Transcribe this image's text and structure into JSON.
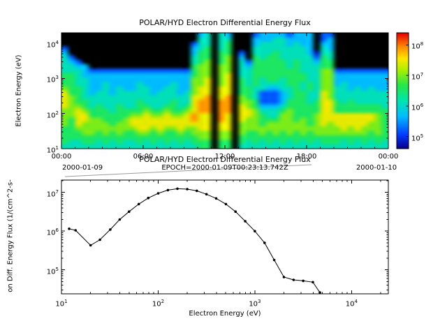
{
  "chart_data": [
    {
      "type": "heatmap",
      "title": "POLAR/HYD  Electron Differential Energy Flux",
      "ylabel": "Electron Energy (eV)",
      "x_tick_labels": [
        "00:00",
        "06:00",
        "12:00",
        "18:00",
        "00:00"
      ],
      "x_tick_hours": [
        0,
        6,
        12,
        18,
        24
      ],
      "x_date_start": "2000-01-09",
      "x_date_end": "2000-01-10",
      "x_range_hours": [
        0,
        24
      ],
      "y_log_range": [
        1.0,
        4.3
      ],
      "y_tick_exponents": [
        1,
        2,
        3,
        4
      ],
      "colorbar_tick_exponents": [
        5,
        6,
        7,
        8
      ],
      "color_log_range": [
        4.6,
        8.4
      ],
      "value_encoding": "each row string is one energy band (top to bottom), one char per 30-min time bin; digit 0 = below scale (black), digits 1-9: log10(flux) = 4.3 + 0.45 * digit",
      "n_time_bins": 48,
      "rows_top_to_bottom": [
        "000000000000000000003404300023333233302200000000",
        "000000000000000000004404400033344333302300000000",
        "000000000000000000024404500034444343303300000000",
        "200000000000000000034504500044444444304300000000",
        "300000000000000000035505502044454444314400000000",
        "420000000000000000045505603054554444425400000000",
        "432000000000000000045605604255555454435500000000",
        "443300000000000000056606604355555454445500000000",
        "444322222222222222256606604455555554446622222222",
        "554333333333333333356606704455555555446633333333",
        "554433333333333333366706705454554555446633333333",
        "554433433334333343366706705454444554546634333333",
        "655433434334433443367707705544334454546644343433",
        "755434434444434443467707705542223455447644444444",
        "765444444444444444477807806542223455447644444444",
        "765544444445444454478808806652223555457754544444",
        "766545445445544554578808807653334555557755555554",
        "667655545555655655678808807764445655557755555555",
        "667755555566766766787708707765446655567777777765",
        "657766555677777777787708707665556656567777777765",
        "657666656677777777777707706665666666567677777665",
        "556666666667767667667707706666666666666667676665",
        "555665656556656556566606606556565656566666666565",
        "555555555555555555556606605555555555555555555555",
        "544554545445454545455505505454545454545554545454",
        "444444444444444444445505504444444444444444444444"
      ]
    },
    {
      "type": "line",
      "title": "POLAR/HYD  Electron Differential Energy Flux",
      "subtitle": "EPOCH=2000-01-09T00:23:13.742Z",
      "xlabel": "Electron Energy (eV)",
      "ylabel": "on Diff. Energy Flux (1/(cm^2-s-",
      "x_log_range": [
        1.0,
        4.38
      ],
      "y_log_range": [
        4.38,
        7.32
      ],
      "x_tick_exponents": [
        1,
        2,
        3,
        4
      ],
      "y_tick_exponents": [
        5,
        6,
        7
      ],
      "marker": "dot",
      "line_color": "#000000",
      "x": [
        12,
        14,
        20,
        25,
        32,
        40,
        50,
        63,
        79,
        100,
        126,
        158,
        200,
        251,
        316,
        398,
        501,
        631,
        794,
        1000,
        1259,
        1585,
        1995,
        2512,
        3162,
        3981,
        4700
      ],
      "y": [
        1150000,
        1050000,
        430000,
        600000,
        1100000,
        2000000,
        3200000,
        5000000,
        7200000,
        9500000,
        11500000,
        12500000,
        12200000,
        11000000,
        9000000,
        7000000,
        5000000,
        3200000,
        1800000,
        1000000,
        500000,
        180000,
        65000,
        55000,
        52000,
        48000,
        26000
      ]
    }
  ]
}
